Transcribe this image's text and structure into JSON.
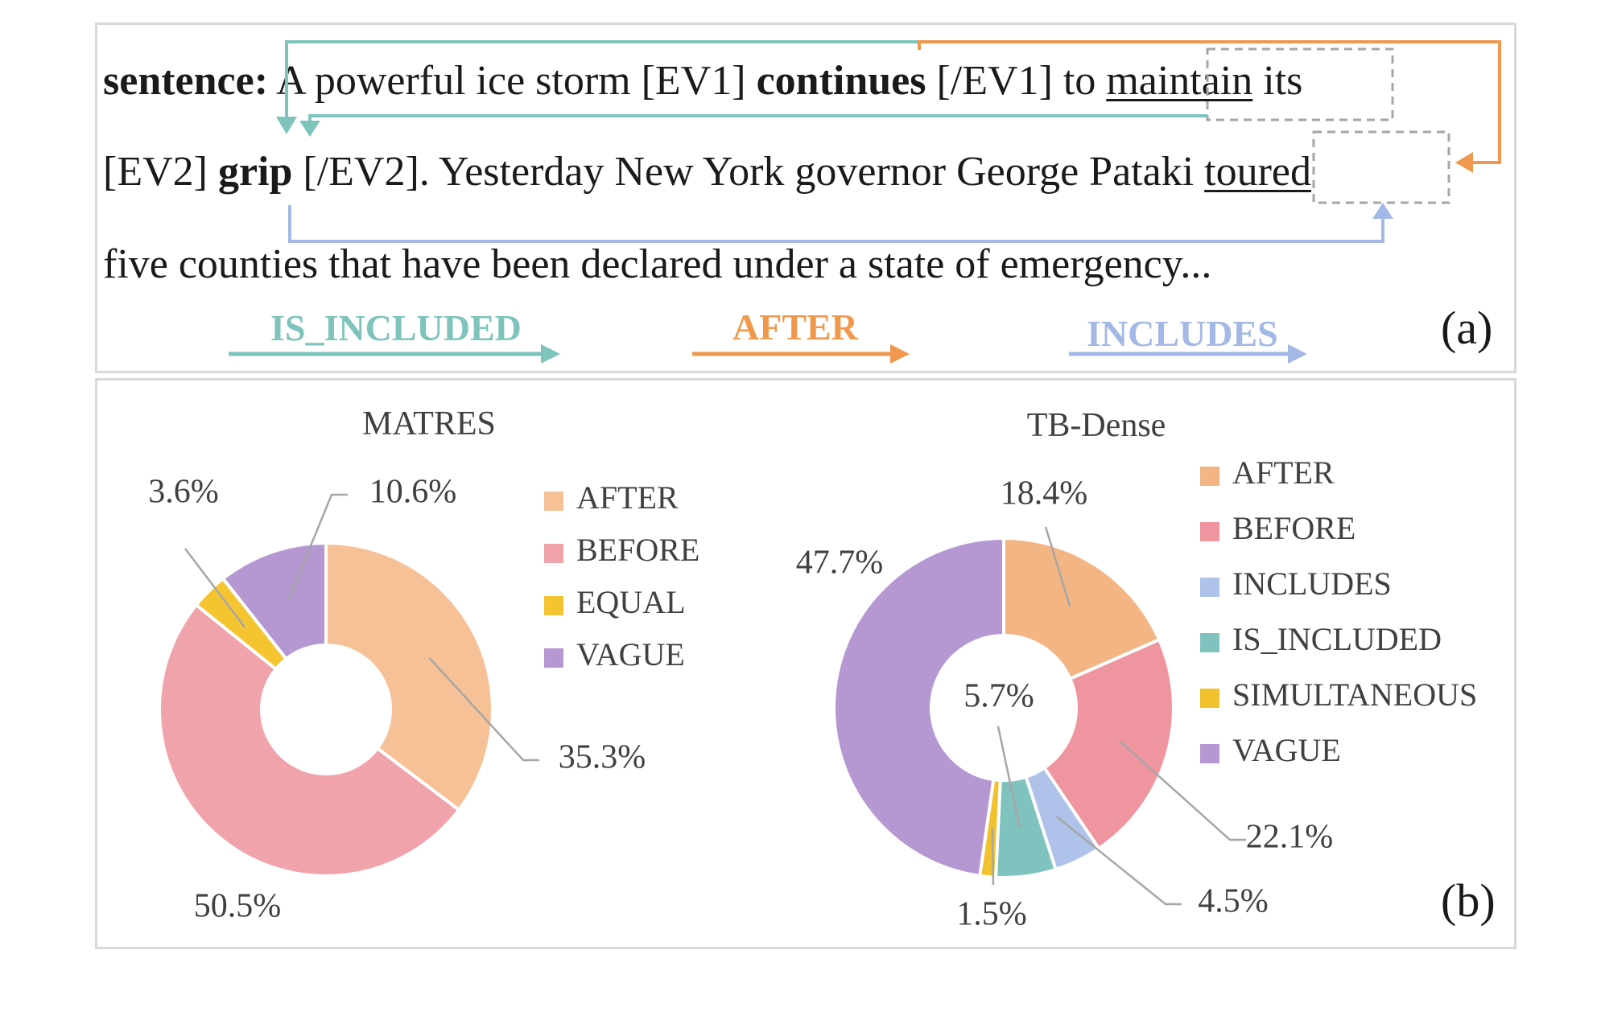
{
  "panel_a": {
    "label": "(a)",
    "line1": {
      "prefix": "sentence:",
      "t1": " A powerful ice storm [EV1] ",
      "ev1": "continues",
      "t2": " [/EV1] to ",
      "maintain": "maintain",
      "t3": " its"
    },
    "line2": {
      "t1": "[EV2] ",
      "ev2": "grip",
      "t2": " [/EV2]. Yesterday New York governor George Pataki ",
      "toured": "toured"
    },
    "line3": "five counties that have been declared under a state of emergency...",
    "relations": [
      {
        "name": "IS_INCLUDED",
        "color": "#7ec4bd"
      },
      {
        "name": "AFTER",
        "color": "#f0994e"
      },
      {
        "name": "INCLUDES",
        "color": "#a3b8e6"
      }
    ]
  },
  "panel_b": {
    "label": "(b)"
  },
  "chart_data": [
    {
      "type": "pie",
      "title": "MATRES",
      "donut": true,
      "legend_position": "right",
      "categories": [
        "AFTER",
        "BEFORE",
        "EQUAL",
        "VAGUE"
      ],
      "values": [
        35.3,
        50.5,
        3.6,
        10.6
      ],
      "labels": [
        "35.3%",
        "50.5%",
        "3.6%",
        "10.6%"
      ],
      "colors": [
        "#f6c197",
        "#f0a3ab",
        "#f5c431",
        "#b598d1"
      ]
    },
    {
      "type": "pie",
      "title": "TB-Dense",
      "donut": true,
      "legend_position": "right",
      "categories": [
        "AFTER",
        "BEFORE",
        "INCLUDES",
        "IS_INCLUDED",
        "SIMULTANEOUS",
        "VAGUE"
      ],
      "values": [
        18.4,
        22.1,
        4.5,
        5.7,
        1.5,
        47.7
      ],
      "labels": [
        "18.4%",
        "22.1%",
        "4.5%",
        "5.7%",
        "1.5%",
        "47.7%"
      ],
      "colors": [
        "#f3b584",
        "#ee959f",
        "#aec2ea",
        "#80c2bd",
        "#f2c12e",
        "#b598d1"
      ]
    }
  ]
}
